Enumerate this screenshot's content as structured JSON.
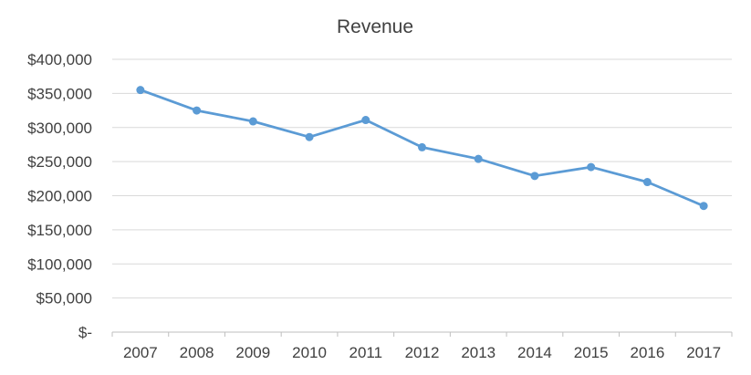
{
  "chart_data": {
    "type": "line",
    "title": "Revenue",
    "xlabel": "",
    "ylabel": "",
    "categories": [
      "2007",
      "2008",
      "2009",
      "2010",
      "2011",
      "2012",
      "2013",
      "2014",
      "2015",
      "2016",
      "2017"
    ],
    "series": [
      {
        "color": "#5b9bd5",
        "values": [
          355000,
          325000,
          309000,
          286000,
          311000,
          271000,
          254000,
          229000,
          242000,
          220000,
          185000
        ]
      }
    ],
    "ylim": [
      0,
      400000
    ],
    "yticks": [
      0,
      50000,
      100000,
      150000,
      200000,
      250000,
      300000,
      350000,
      400000
    ],
    "ytick_labels": [
      "$-",
      "$50,000",
      "$100,000",
      "$150,000",
      "$200,000",
      "$250,000",
      "$300,000",
      "$350,000",
      "$400,000"
    ],
    "grid": true,
    "legend": "none"
  }
}
